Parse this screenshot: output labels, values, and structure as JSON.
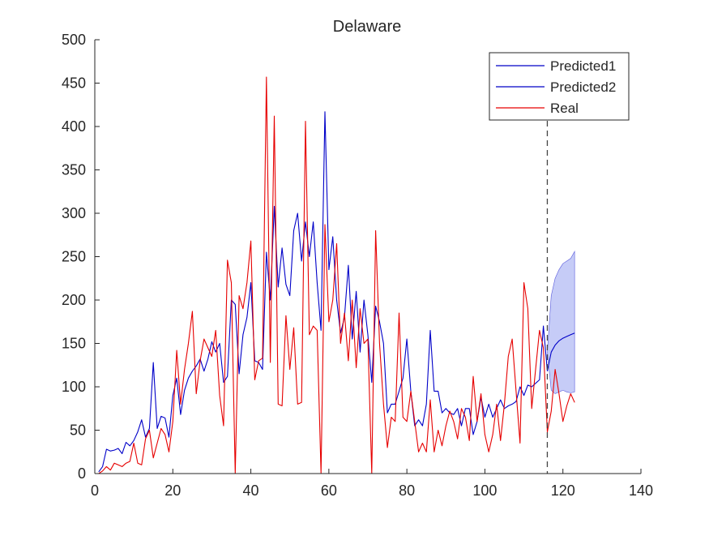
{
  "chart_data": {
    "type": "line",
    "title": "Delaware",
    "xlabel": "",
    "ylabel": "",
    "xlim": [
      0,
      140
    ],
    "ylim": [
      0,
      500
    ],
    "xticks": [
      0,
      20,
      40,
      60,
      80,
      100,
      120,
      140
    ],
    "yticks": [
      0,
      50,
      100,
      150,
      200,
      250,
      300,
      350,
      400,
      450,
      500
    ],
    "grid": false,
    "legend_position": "top-right",
    "forecast_start_x": 116,
    "colors": {
      "predicted": "#0000c8",
      "real": "#e60000",
      "band_fill": "#c6ccf7",
      "divider": "#444444",
      "axis": "#262626"
    },
    "band": {
      "x": [
        116,
        117,
        118,
        119,
        120,
        121,
        122,
        123
      ],
      "upper": [
        140,
        205,
        225,
        235,
        242,
        245,
        248,
        256
      ],
      "lower": [
        140,
        96,
        92,
        94,
        96,
        94,
        93,
        94
      ]
    },
    "series": [
      {
        "name": "Predicted1",
        "color": "#0000c8",
        "x": [
          1,
          2,
          3,
          4,
          5,
          6,
          7,
          8,
          9,
          10,
          11,
          12,
          13,
          14,
          15,
          16,
          17,
          18,
          19,
          20,
          21,
          22,
          23,
          24,
          25,
          26,
          27,
          28,
          29,
          30,
          31,
          32,
          33,
          34,
          35,
          36,
          37,
          38,
          39,
          40,
          41,
          42,
          43,
          44,
          45,
          46,
          47,
          48,
          49,
          50,
          51,
          52,
          53,
          54,
          55,
          56,
          57,
          58,
          59,
          60,
          61,
          62,
          63,
          64,
          65,
          66,
          67,
          68,
          69,
          70,
          71,
          72,
          73,
          74,
          75,
          76,
          77,
          78,
          79,
          80,
          81,
          82,
          83,
          84,
          85,
          86,
          87,
          88,
          89,
          90,
          91,
          92,
          93,
          94,
          95,
          96,
          97,
          98,
          99,
          100,
          101,
          102,
          103,
          104,
          105,
          106,
          107,
          108,
          109,
          110,
          111,
          112,
          113,
          114,
          115,
          116
        ],
        "y": [
          2,
          8,
          28,
          26,
          27,
          29,
          23,
          36,
          32,
          38,
          48,
          62,
          42,
          52,
          128,
          52,
          66,
          64,
          42,
          90,
          110,
          68,
          96,
          110,
          118,
          124,
          132,
          118,
          132,
          152,
          140,
          150,
          105,
          112,
          200,
          195,
          115,
          160,
          180,
          220,
          130,
          128,
          120,
          255,
          200,
          308,
          215,
          260,
          218,
          205,
          280,
          300,
          245,
          290,
          250,
          290,
          220,
          165,
          417,
          235,
          273,
          200,
          162,
          180,
          240,
          155,
          210,
          140,
          200,
          160,
          105,
          193,
          175,
          150,
          70,
          80,
          80,
          95,
          110,
          155,
          95,
          55,
          62,
          55,
          80,
          165,
          95,
          95,
          70,
          75,
          70,
          68,
          75,
          55,
          75,
          75,
          45,
          60,
          88,
          65,
          80,
          65,
          75,
          85,
          75,
          78,
          80,
          83,
          100,
          90,
          102,
          100,
          104,
          108,
          170,
          118
        ]
      },
      {
        "name": "Predicted2",
        "color": "#0000c8",
        "x": [
          116,
          117,
          118,
          119,
          120,
          121,
          122,
          123
        ],
        "y": [
          118,
          140,
          148,
          153,
          156,
          158,
          160,
          162
        ]
      },
      {
        "name": "Real",
        "color": "#e60000",
        "x": [
          1,
          2,
          3,
          4,
          5,
          6,
          7,
          8,
          9,
          10,
          11,
          12,
          13,
          14,
          15,
          16,
          17,
          18,
          19,
          20,
          21,
          22,
          23,
          24,
          25,
          26,
          27,
          28,
          29,
          30,
          31,
          32,
          33,
          34,
          35,
          36,
          37,
          38,
          39,
          40,
          41,
          42,
          43,
          44,
          45,
          46,
          47,
          48,
          49,
          50,
          51,
          52,
          53,
          54,
          55,
          56,
          57,
          58,
          59,
          60,
          61,
          62,
          63,
          64,
          65,
          66,
          67,
          68,
          69,
          70,
          71,
          72,
          73,
          74,
          75,
          76,
          77,
          78,
          79,
          80,
          81,
          82,
          83,
          84,
          85,
          86,
          87,
          88,
          89,
          90,
          91,
          92,
          93,
          94,
          95,
          96,
          97,
          98,
          99,
          100,
          101,
          102,
          103,
          104,
          105,
          106,
          107,
          108,
          109,
          110,
          111,
          112,
          113,
          114,
          115,
          116,
          117,
          118,
          119,
          120,
          121,
          122,
          123
        ],
        "y": [
          0,
          3,
          8,
          4,
          12,
          10,
          8,
          12,
          14,
          35,
          12,
          10,
          40,
          50,
          18,
          35,
          52,
          45,
          25,
          60,
          142,
          80,
          120,
          150,
          187,
          92,
          130,
          155,
          145,
          135,
          165,
          90,
          55,
          246,
          220,
          0,
          205,
          190,
          220,
          268,
          108,
          130,
          133,
          457,
          128,
          412,
          80,
          78,
          182,
          120,
          168,
          80,
          82,
          406,
          160,
          170,
          165,
          0,
          287,
          175,
          200,
          265,
          150,
          185,
          130,
          200,
          122,
          190,
          150,
          155,
          0,
          280,
          150,
          80,
          30,
          65,
          60,
          185,
          65,
          60,
          95,
          60,
          25,
          35,
          25,
          85,
          25,
          50,
          32,
          55,
          72,
          60,
          40,
          75,
          65,
          38,
          112,
          60,
          92,
          45,
          25,
          45,
          80,
          38,
          80,
          135,
          155,
          95,
          35,
          220,
          190,
          75,
          120,
          165,
          145,
          48,
          72,
          120,
          92,
          60,
          78,
          92,
          82
        ]
      }
    ]
  }
}
